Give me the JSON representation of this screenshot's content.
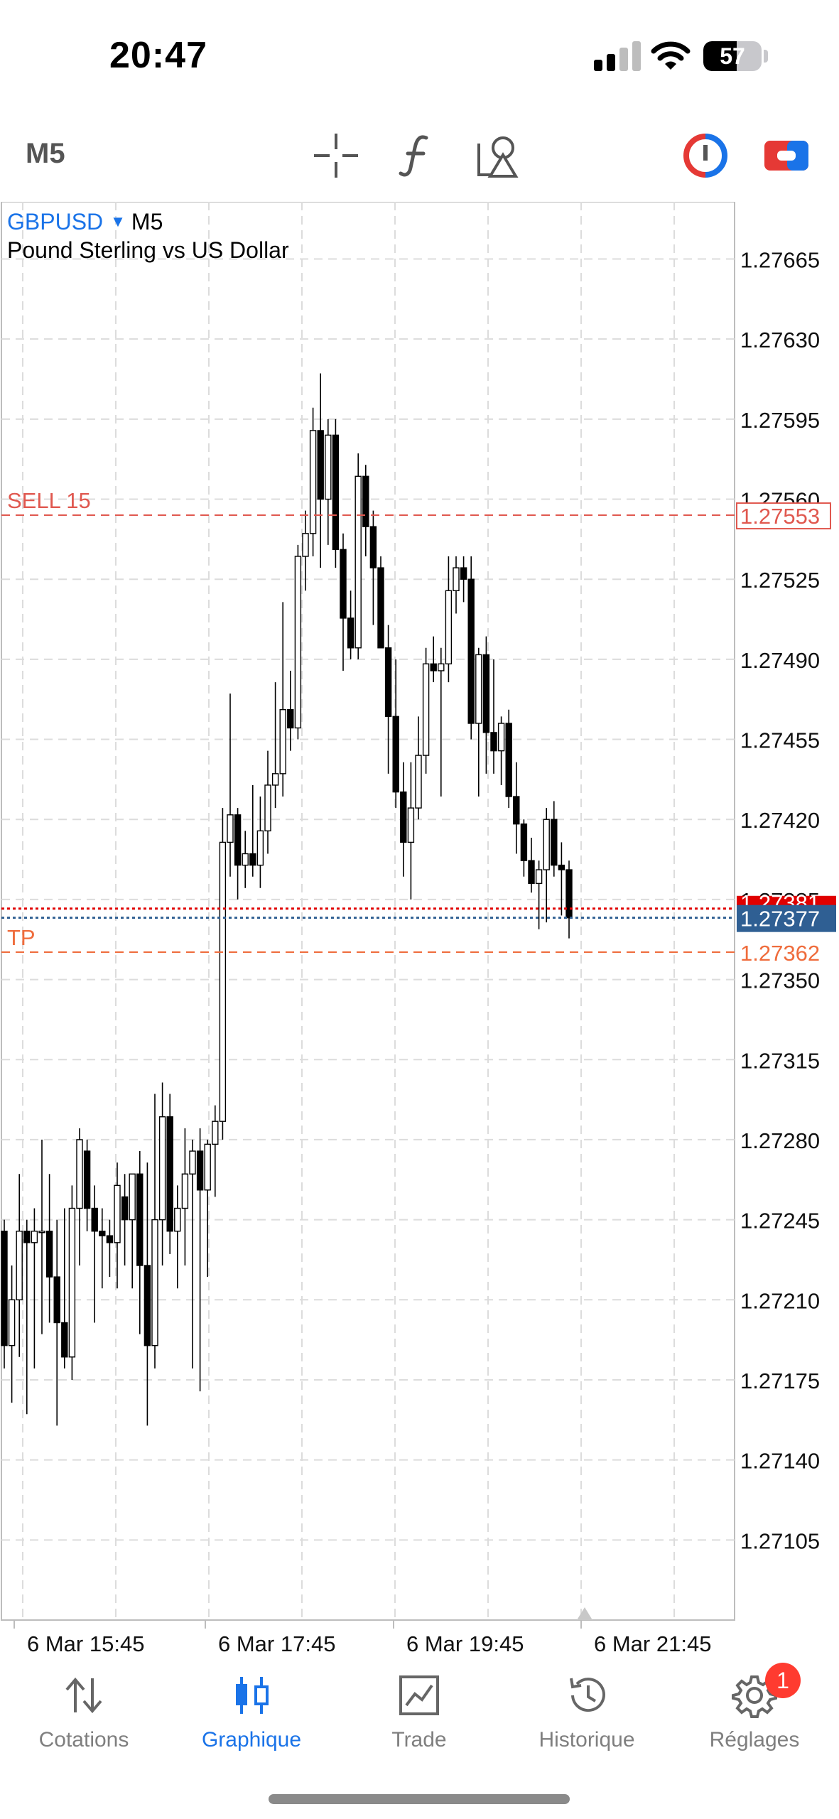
{
  "status_bar": {
    "time": "20:47",
    "battery": "57",
    "battery_level": 0.57
  },
  "toolbar": {
    "timeframe": "M5",
    "icons": [
      "crosshair-icon",
      "function-icon",
      "objects-icon",
      "one-click-trading-icon",
      "trade-panel-icon"
    ],
    "accent_colors": {
      "blue": "#1a73e8",
      "red": "#e53935"
    }
  },
  "chart": {
    "symbol": "GBPUSD",
    "timeframe": "M5",
    "description": "Pound Sterling vs US Dollar",
    "price_axis": {
      "ticks": [
        "1.27665",
        "1.27630",
        "1.27595",
        "1.27560",
        "1.27525",
        "1.27490",
        "1.27455",
        "1.27420",
        "1.27385",
        "1.27350",
        "1.27315",
        "1.27280",
        "1.27245",
        "1.27210",
        "1.27175",
        "1.27140",
        "1.27105"
      ]
    },
    "time_axis": {
      "labels": [
        "6 Mar 15:45",
        "6 Mar 17:45",
        "6 Mar 19:45",
        "6 Mar 21:45"
      ]
    },
    "sell_line": {
      "label": "SELL 15",
      "price": "1.27553",
      "color": "#e0584f"
    },
    "tp_line": {
      "label": "TP",
      "price": "1.27362",
      "color": "#ef6c3c"
    },
    "ask_line": {
      "price": "1.27381",
      "color": "#e00000"
    },
    "bid_line": {
      "price": "1.27377",
      "color": "#2f5f93"
    }
  },
  "chart_data": {
    "type": "candlestick",
    "title": "GBPUSD, M5",
    "ylim": [
      1.2707,
      1.2769
    ],
    "x_labels": [
      "6 Mar 15:45",
      "6 Mar 17:45",
      "6 Mar 19:45",
      "6 Mar 21:45"
    ],
    "grid": true,
    "candles": [
      {
        "o": 1.2724,
        "h": 1.27245,
        "l": 1.2718,
        "c": 1.2719
      },
      {
        "o": 1.2719,
        "h": 1.27225,
        "l": 1.27165,
        "c": 1.2721
      },
      {
        "o": 1.2721,
        "h": 1.27265,
        "l": 1.27185,
        "c": 1.2724
      },
      {
        "o": 1.2724,
        "h": 1.27245,
        "l": 1.2716,
        "c": 1.27235
      },
      {
        "o": 1.27235,
        "h": 1.2725,
        "l": 1.2718,
        "c": 1.2724
      },
      {
        "o": 1.2724,
        "h": 1.2728,
        "l": 1.27195,
        "c": 1.2724
      },
      {
        "o": 1.2724,
        "h": 1.27265,
        "l": 1.272,
        "c": 1.2722
      },
      {
        "o": 1.2722,
        "h": 1.27245,
        "l": 1.27155,
        "c": 1.272
      },
      {
        "o": 1.272,
        "h": 1.2725,
        "l": 1.2718,
        "c": 1.27185
      },
      {
        "o": 1.27185,
        "h": 1.2726,
        "l": 1.27175,
        "c": 1.2725
      },
      {
        "o": 1.2725,
        "h": 1.27285,
        "l": 1.27225,
        "c": 1.2728
      },
      {
        "o": 1.27275,
        "h": 1.2728,
        "l": 1.2724,
        "c": 1.2725
      },
      {
        "o": 1.2725,
        "h": 1.2726,
        "l": 1.272,
        "c": 1.2724
      },
      {
        "o": 1.2724,
        "h": 1.2725,
        "l": 1.27215,
        "c": 1.27238
      },
      {
        "o": 1.27238,
        "h": 1.27245,
        "l": 1.2722,
        "c": 1.27235
      },
      {
        "o": 1.27235,
        "h": 1.2727,
        "l": 1.27215,
        "c": 1.2726
      },
      {
        "o": 1.27255,
        "h": 1.27265,
        "l": 1.27225,
        "c": 1.27245
      },
      {
        "o": 1.27245,
        "h": 1.2726,
        "l": 1.27215,
        "c": 1.27265
      },
      {
        "o": 1.27265,
        "h": 1.27275,
        "l": 1.27195,
        "c": 1.27225
      },
      {
        "o": 1.27225,
        "h": 1.2727,
        "l": 1.27155,
        "c": 1.2719
      },
      {
        "o": 1.2719,
        "h": 1.273,
        "l": 1.2718,
        "c": 1.27245
      },
      {
        "o": 1.27245,
        "h": 1.27305,
        "l": 1.27225,
        "c": 1.2729
      },
      {
        "o": 1.2729,
        "h": 1.273,
        "l": 1.2723,
        "c": 1.2724
      },
      {
        "o": 1.2724,
        "h": 1.2726,
        "l": 1.27215,
        "c": 1.2725
      },
      {
        "o": 1.2725,
        "h": 1.27285,
        "l": 1.27225,
        "c": 1.27265
      },
      {
        "o": 1.27265,
        "h": 1.2728,
        "l": 1.2718,
        "c": 1.27275
      },
      {
        "o": 1.27275,
        "h": 1.27285,
        "l": 1.2717,
        "c": 1.27258
      },
      {
        "o": 1.27258,
        "h": 1.2728,
        "l": 1.2722,
        "c": 1.27278
      },
      {
        "o": 1.27278,
        "h": 1.27295,
        "l": 1.27255,
        "c": 1.27288
      },
      {
        "o": 1.27288,
        "h": 1.27425,
        "l": 1.2728,
        "c": 1.2741
      },
      {
        "o": 1.2741,
        "h": 1.27475,
        "l": 1.27395,
        "c": 1.27422
      },
      {
        "o": 1.27422,
        "h": 1.27425,
        "l": 1.27385,
        "c": 1.274
      },
      {
        "o": 1.274,
        "h": 1.27415,
        "l": 1.2739,
        "c": 1.27405
      },
      {
        "o": 1.27405,
        "h": 1.27435,
        "l": 1.27395,
        "c": 1.274
      },
      {
        "o": 1.274,
        "h": 1.2743,
        "l": 1.2739,
        "c": 1.27415
      },
      {
        "o": 1.27415,
        "h": 1.2745,
        "l": 1.27405,
        "c": 1.27435
      },
      {
        "o": 1.27435,
        "h": 1.2748,
        "l": 1.27425,
        "c": 1.2744
      },
      {
        "o": 1.2744,
        "h": 1.27515,
        "l": 1.2743,
        "c": 1.27468
      },
      {
        "o": 1.27468,
        "h": 1.27485,
        "l": 1.2745,
        "c": 1.2746
      },
      {
        "o": 1.2746,
        "h": 1.2754,
        "l": 1.27455,
        "c": 1.27535
      },
      {
        "o": 1.27535,
        "h": 1.27555,
        "l": 1.2752,
        "c": 1.27545
      },
      {
        "o": 1.27545,
        "h": 1.276,
        "l": 1.27535,
        "c": 1.2759
      },
      {
        "o": 1.2759,
        "h": 1.27615,
        "l": 1.2753,
        "c": 1.2756
      },
      {
        "o": 1.2756,
        "h": 1.27595,
        "l": 1.2754,
        "c": 1.27588
      },
      {
        "o": 1.27588,
        "h": 1.27595,
        "l": 1.2753,
        "c": 1.27538
      },
      {
        "o": 1.27538,
        "h": 1.27545,
        "l": 1.27485,
        "c": 1.27508
      },
      {
        "o": 1.27508,
        "h": 1.2752,
        "l": 1.2749,
        "c": 1.27495
      },
      {
        "o": 1.27495,
        "h": 1.2758,
        "l": 1.2749,
        "c": 1.2757
      },
      {
        "o": 1.2757,
        "h": 1.27575,
        "l": 1.27535,
        "c": 1.27548
      },
      {
        "o": 1.27548,
        "h": 1.27555,
        "l": 1.27505,
        "c": 1.2753
      },
      {
        "o": 1.2753,
        "h": 1.27535,
        "l": 1.27495,
        "c": 1.27495
      },
      {
        "o": 1.27495,
        "h": 1.27505,
        "l": 1.2744,
        "c": 1.27465
      },
      {
        "o": 1.27465,
        "h": 1.2749,
        "l": 1.27425,
        "c": 1.27432
      },
      {
        "o": 1.27432,
        "h": 1.27445,
        "l": 1.27395,
        "c": 1.2741
      },
      {
        "o": 1.2741,
        "h": 1.27445,
        "l": 1.27385,
        "c": 1.27425
      },
      {
        "o": 1.27425,
        "h": 1.27465,
        "l": 1.2742,
        "c": 1.27448
      },
      {
        "o": 1.27448,
        "h": 1.27495,
        "l": 1.2744,
        "c": 1.27488
      },
      {
        "o": 1.27488,
        "h": 1.275,
        "l": 1.2748,
        "c": 1.27485
      },
      {
        "o": 1.27485,
        "h": 1.27495,
        "l": 1.2743,
        "c": 1.27488
      },
      {
        "o": 1.27488,
        "h": 1.27535,
        "l": 1.2748,
        "c": 1.2752
      },
      {
        "o": 1.2752,
        "h": 1.27535,
        "l": 1.2751,
        "c": 1.2753
      },
      {
        "o": 1.2753,
        "h": 1.27535,
        "l": 1.27515,
        "c": 1.27525
      },
      {
        "o": 1.27525,
        "h": 1.27535,
        "l": 1.27455,
        "c": 1.27462
      },
      {
        "o": 1.27462,
        "h": 1.27495,
        "l": 1.2743,
        "c": 1.27492
      },
      {
        "o": 1.27492,
        "h": 1.275,
        "l": 1.2744,
        "c": 1.27458
      },
      {
        "o": 1.27458,
        "h": 1.2749,
        "l": 1.2744,
        "c": 1.2745
      },
      {
        "o": 1.2745,
        "h": 1.27465,
        "l": 1.27435,
        "c": 1.27462
      },
      {
        "o": 1.27462,
        "h": 1.27468,
        "l": 1.27425,
        "c": 1.2743
      },
      {
        "o": 1.2743,
        "h": 1.27445,
        "l": 1.27405,
        "c": 1.27418
      },
      {
        "o": 1.27418,
        "h": 1.2742,
        "l": 1.27395,
        "c": 1.27402
      },
      {
        "o": 1.27402,
        "h": 1.27412,
        "l": 1.27388,
        "c": 1.27392
      },
      {
        "o": 1.27392,
        "h": 1.27402,
        "l": 1.27372,
        "c": 1.27398
      },
      {
        "o": 1.27398,
        "h": 1.27425,
        "l": 1.27375,
        "c": 1.2742
      },
      {
        "o": 1.2742,
        "h": 1.27428,
        "l": 1.27395,
        "c": 1.274
      },
      {
        "o": 1.274,
        "h": 1.2741,
        "l": 1.27378,
        "c": 1.27398
      },
      {
        "o": 1.27398,
        "h": 1.27402,
        "l": 1.27368,
        "c": 1.27377
      }
    ]
  },
  "bottom_nav": {
    "items": [
      {
        "label": "Cotations",
        "icon": "quotes-arrows-icon"
      },
      {
        "label": "Graphique",
        "icon": "chart-candles-icon",
        "active": true
      },
      {
        "label": "Trade",
        "icon": "trade-chart-icon"
      },
      {
        "label": "Historique",
        "icon": "history-clock-icon"
      },
      {
        "label": "Réglages",
        "icon": "gear-icon"
      }
    ],
    "settings_badge": "1"
  }
}
